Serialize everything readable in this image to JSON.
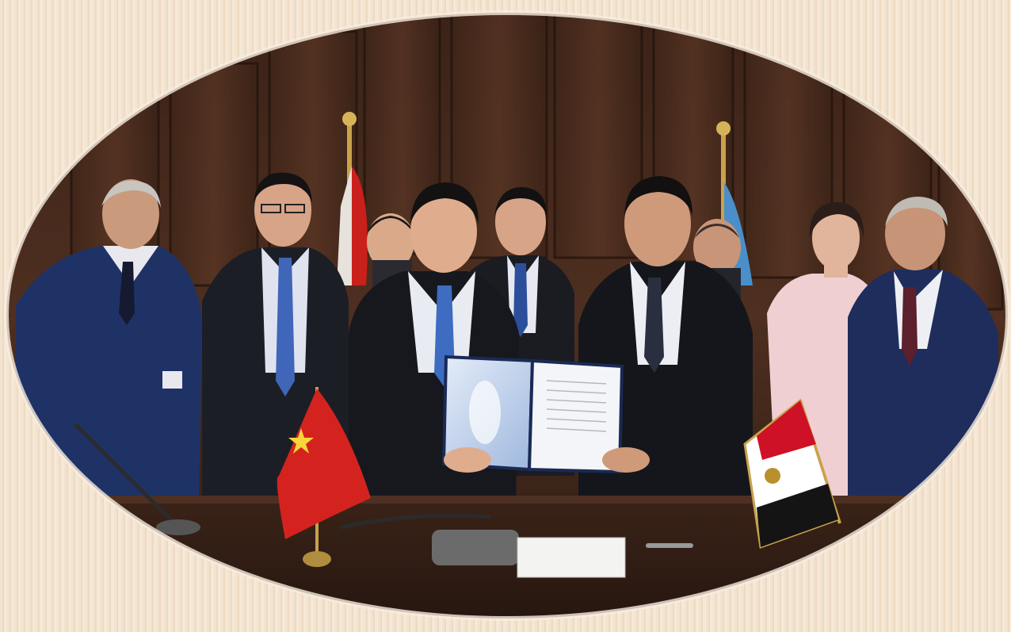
{
  "photo": {
    "subject": "",
    "frame_shape": "oval",
    "background_color": "#f2e3cf",
    "flags": [
      {
        "name": "china-flag",
        "color": "#d4231f"
      },
      {
        "name": "egypt-flag",
        "colors": [
          "#ce1126",
          "#ffffff",
          "#000000"
        ]
      }
    ],
    "nameplate_text": "",
    "document_cover_color": "#c8d8ef"
  }
}
